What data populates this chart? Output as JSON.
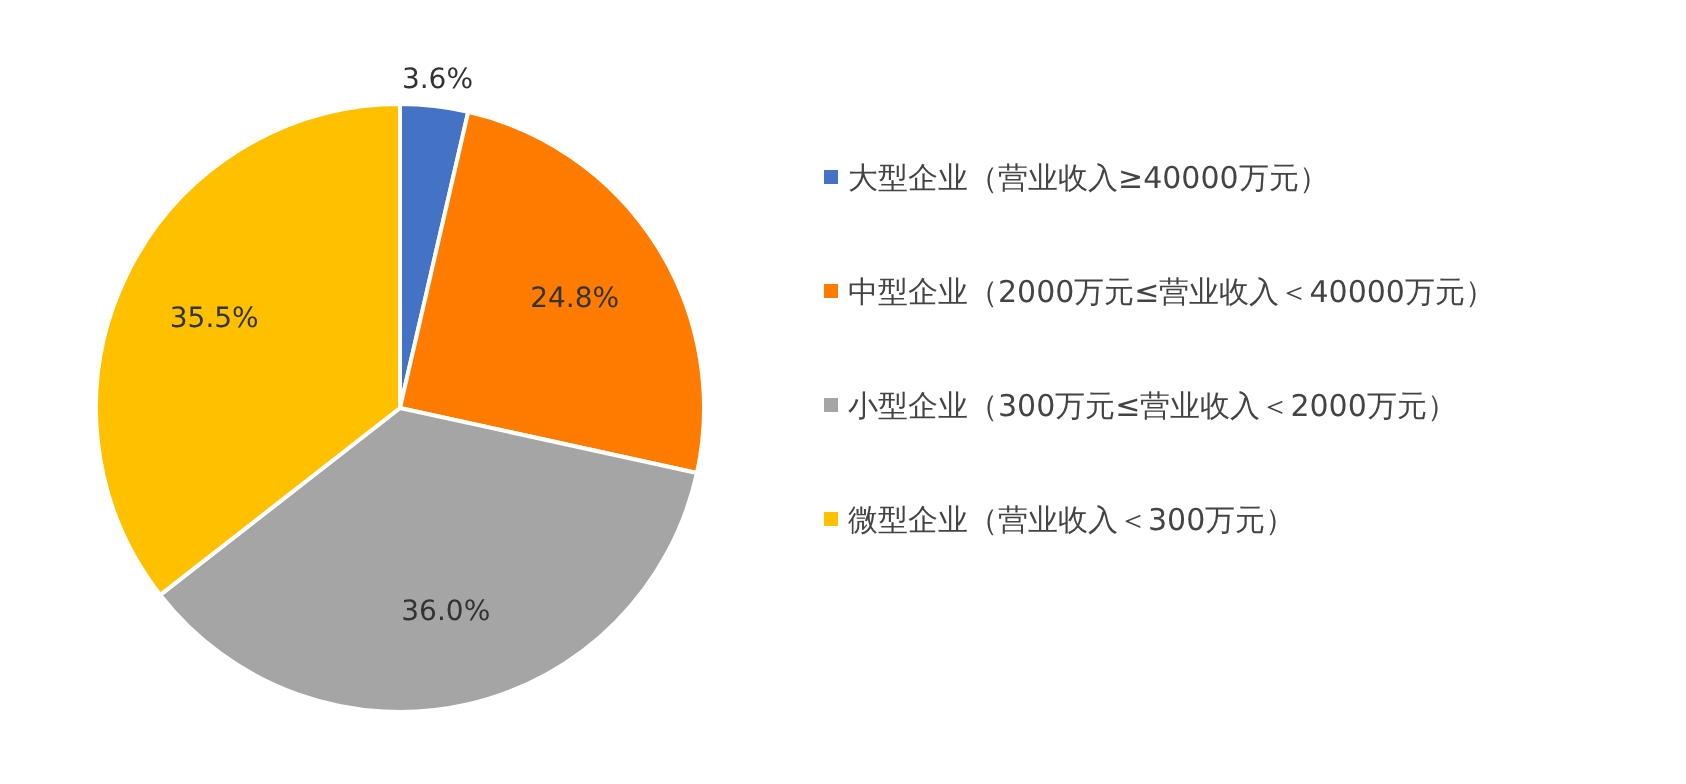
{
  "chart_data": {
    "type": "pie",
    "categories": [
      "大型企业（营业收入≥40000万元）",
      "中型企业（2000万元≤营业收入＜40000万元）",
      "小型企业（300万元≤营业收入＜2000万元）",
      "微型企业（营业收入＜300万元）"
    ],
    "values": [
      3.6,
      24.8,
      36.0,
      35.5
    ],
    "value_labels": [
      "3.6%",
      "24.8%",
      "36.0%",
      "35.5%"
    ],
    "colors": [
      "#4472c4",
      "#ff7c00",
      "#a5a5a5",
      "#ffc000"
    ],
    "legend": "right"
  }
}
